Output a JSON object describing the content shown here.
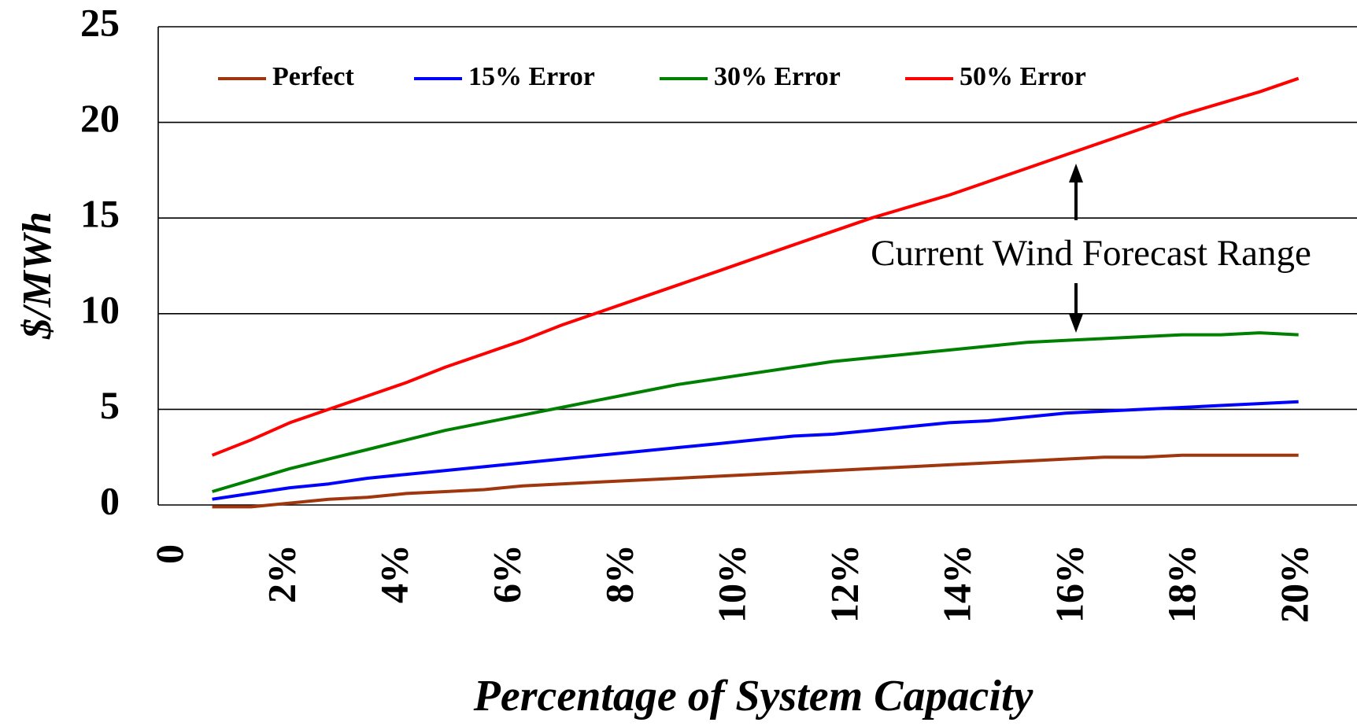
{
  "chart_data": {
    "type": "line",
    "x_label": "Percentage of System Capacity",
    "y_label": "$/MWh",
    "annotation": "Current Wind Forecast Range",
    "x": [
      0.69,
      1.38,
      2.07,
      2.76,
      3.45,
      4.14,
      4.83,
      5.52,
      6.21,
      6.9,
      7.59,
      8.28,
      8.97,
      9.66,
      10.34,
      11.03,
      11.72,
      12.41,
      13.1,
      13.79,
      14.48,
      15.17,
      15.86,
      16.55,
      17.24,
      17.93,
      18.62,
      19.31,
      20.0
    ],
    "series": [
      {
        "name": "Perfect",
        "color": "#a0360e",
        "values": [
          -0.1,
          -0.1,
          0.1,
          0.3,
          0.4,
          0.6,
          0.7,
          0.8,
          1.0,
          1.1,
          1.2,
          1.3,
          1.4,
          1.5,
          1.6,
          1.7,
          1.8,
          1.9,
          2.0,
          2.1,
          2.2,
          2.3,
          2.4,
          2.5,
          2.5,
          2.6,
          2.6,
          2.6,
          2.6
        ]
      },
      {
        "name": "15% Error",
        "color": "#0000ff",
        "values": [
          0.3,
          0.6,
          0.9,
          1.1,
          1.4,
          1.6,
          1.8,
          2.0,
          2.2,
          2.4,
          2.6,
          2.8,
          3.0,
          3.2,
          3.4,
          3.6,
          3.7,
          3.9,
          4.1,
          4.3,
          4.4,
          4.6,
          4.8,
          4.9,
          5.0,
          5.1,
          5.2,
          5.3,
          5.4
        ]
      },
      {
        "name": "30% Error",
        "color": "#008000",
        "values": [
          0.7,
          1.3,
          1.9,
          2.4,
          2.9,
          3.4,
          3.9,
          4.3,
          4.7,
          5.1,
          5.5,
          5.9,
          6.3,
          6.6,
          6.9,
          7.2,
          7.5,
          7.7,
          7.9,
          8.1,
          8.3,
          8.5,
          8.6,
          8.7,
          8.8,
          8.9,
          8.9,
          9.0,
          8.9
        ]
      },
      {
        "name": "50% Error",
        "color": "#ff0000",
        "values": [
          2.6,
          3.4,
          4.3,
          5.0,
          5.7,
          6.4,
          7.2,
          7.9,
          8.6,
          9.4,
          10.1,
          10.8,
          11.5,
          12.2,
          12.9,
          13.6,
          14.3,
          15.0,
          15.6,
          16.2,
          16.9,
          17.6,
          18.3,
          19.0,
          19.7,
          20.4,
          21.0,
          21.6,
          22.3
        ]
      }
    ],
    "xlim": [
      -0.27,
      21.04
    ],
    "xticks": [
      0,
      {
        "value": 2,
        "label": "2%"
      },
      {
        "value": 4,
        "label": "4%"
      },
      {
        "value": 6,
        "label": "6%"
      },
      {
        "value": 8,
        "label": "8%"
      },
      {
        "value": 10,
        "label": "10%"
      },
      {
        "value": 12,
        "label": "12%"
      },
      {
        "value": 14,
        "label": "14%"
      },
      {
        "value": 16,
        "label": "16%"
      },
      {
        "value": 18,
        "label": "18%"
      },
      {
        "value": 20,
        "label": "20%"
      }
    ],
    "ylim": [
      0,
      25
    ],
    "yticks": [
      0,
      5,
      10,
      15,
      20,
      25
    ],
    "grid": true,
    "legend": "top"
  }
}
